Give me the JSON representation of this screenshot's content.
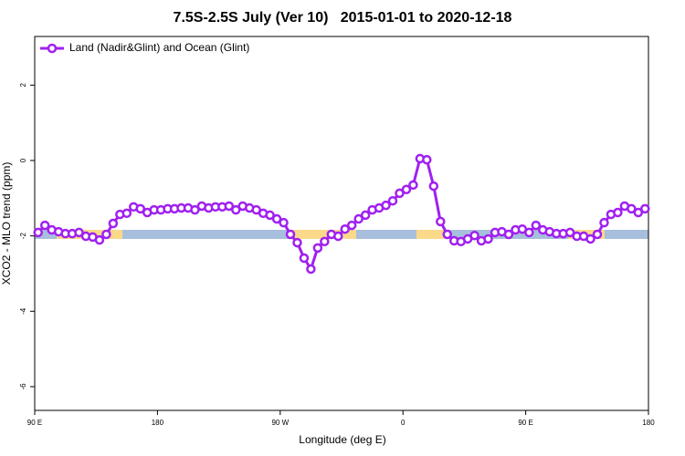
{
  "chart_data": {
    "type": "line",
    "title": "7.5S-2.5S July (Ver 10)   2015-01-01 to 2020-12-18",
    "x_label": "Longitude (deg E)",
    "y_label": "XCO2 - MLO trend (ppm)",
    "x": [
      92.5,
      97.5,
      102.5,
      107.5,
      112.5,
      117.5,
      122.5,
      127.5,
      132.5,
      137.5,
      142.5,
      147.5,
      152.5,
      157.5,
      162.5,
      167.5,
      172.5,
      177.5,
      182.5,
      187.5,
      192.5,
      197.5,
      202.5,
      207.5,
      212.5,
      217.5,
      222.5,
      227.5,
      232.5,
      237.5,
      242.5,
      247.5,
      252.5,
      257.5,
      262.5,
      267.5,
      272.5,
      277.5,
      282.5,
      287.5,
      292.5,
      297.5,
      302.5,
      307.5,
      312.5,
      317.5,
      322.5,
      327.5,
      332.5,
      337.5,
      342.5,
      347.5,
      352.5,
      357.5,
      362.5,
      367.5,
      372.5,
      377.5,
      382.5,
      387.5,
      392.5,
      397.5,
      402.5,
      407.5,
      412.5,
      417.5,
      422.5,
      427.5,
      432.5,
      437.5,
      442.5,
      447.5,
      452.5,
      457.5,
      462.5,
      467.5,
      472.5,
      477.5,
      482.5,
      487.5,
      492.5,
      497.5,
      502.5,
      507.5,
      512.5,
      517.5,
      522.5,
      527.5,
      532.5,
      537.5
    ],
    "series": [
      {
        "name": "Land (Nadir&Glint) and Ocean (Glint)",
        "color": "#a020f0",
        "values": [
          -1.91,
          -1.72,
          -1.84,
          -1.89,
          -1.94,
          -1.94,
          -1.91,
          -2.01,
          -2.03,
          -2.11,
          -1.96,
          -1.67,
          -1.43,
          -1.4,
          -1.23,
          -1.28,
          -1.38,
          -1.31,
          -1.31,
          -1.28,
          -1.28,
          -1.26,
          -1.26,
          -1.31,
          -1.21,
          -1.26,
          -1.23,
          -1.23,
          -1.21,
          -1.31,
          -1.21,
          -1.26,
          -1.31,
          -1.4,
          -1.45,
          -1.55,
          -1.65,
          -1.96,
          -2.18,
          -2.59,
          -2.88,
          -2.32,
          -2.15,
          -1.96,
          -2.01,
          -1.82,
          -1.72,
          -1.55,
          -1.45,
          -1.31,
          -1.26,
          -1.19,
          -1.07,
          -0.87,
          -0.77,
          -0.65,
          0.05,
          0.02,
          -0.68,
          -1.62,
          -1.96,
          -2.13,
          -2.15,
          -2.08,
          -1.99,
          -2.13,
          -2.08,
          -1.91,
          -1.89,
          -1.96,
          -1.84,
          -1.82,
          -1.91,
          -1.72,
          -1.84,
          -1.89,
          -1.94,
          -1.94,
          -1.91,
          -2.01,
          -2.01,
          -2.08,
          -1.96,
          -1.65,
          -1.43,
          -1.38,
          -1.21,
          -1.28,
          -1.38,
          -1.28
        ]
      }
    ],
    "xlim": [
      90,
      540
    ],
    "xticks": [
      {
        "value": 90,
        "label": "90 E"
      },
      {
        "value": 180,
        "label": "180"
      },
      {
        "value": 270,
        "label": "90 W"
      },
      {
        "value": 360,
        "label": "0"
      },
      {
        "value": 450,
        "label": "90 E"
      },
      {
        "value": 540,
        "label": "180"
      }
    ],
    "ylim": [
      -6.63,
      3.29
    ],
    "yticks": [
      2,
      0,
      -2,
      -4,
      -6
    ],
    "legend": "top-left",
    "grid": false
  }
}
